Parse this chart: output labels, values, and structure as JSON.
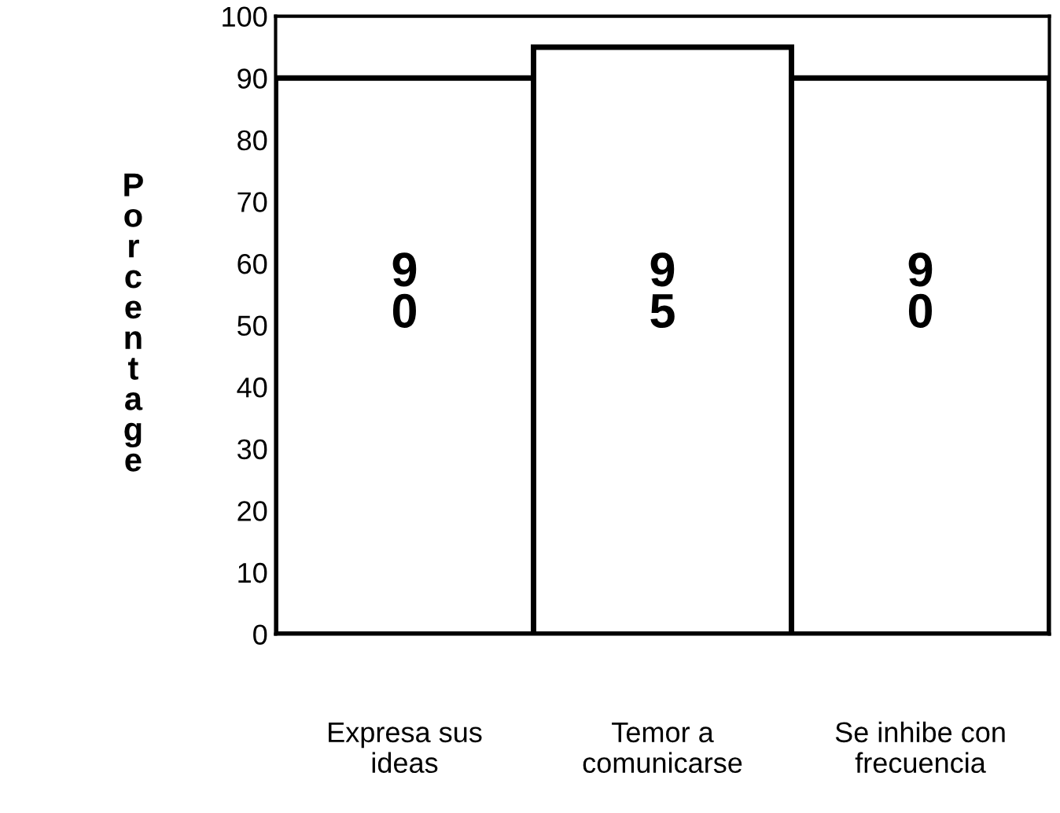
{
  "chart_data": {
    "type": "bar",
    "ylabel": "Porcentage",
    "categories": [
      "Expresa sus\nideas",
      "Temor a\ncomunicarse",
      "Se inhibe con\nfrecuencia"
    ],
    "values": [
      90,
      95,
      90
    ],
    "color": "#ffffff",
    "ylim": [
      0,
      100
    ],
    "yticks": [
      0,
      10,
      20,
      30,
      40,
      50,
      60,
      70,
      80,
      90,
      100
    ],
    "data_labels": true,
    "grid": false,
    "legend": false
  }
}
